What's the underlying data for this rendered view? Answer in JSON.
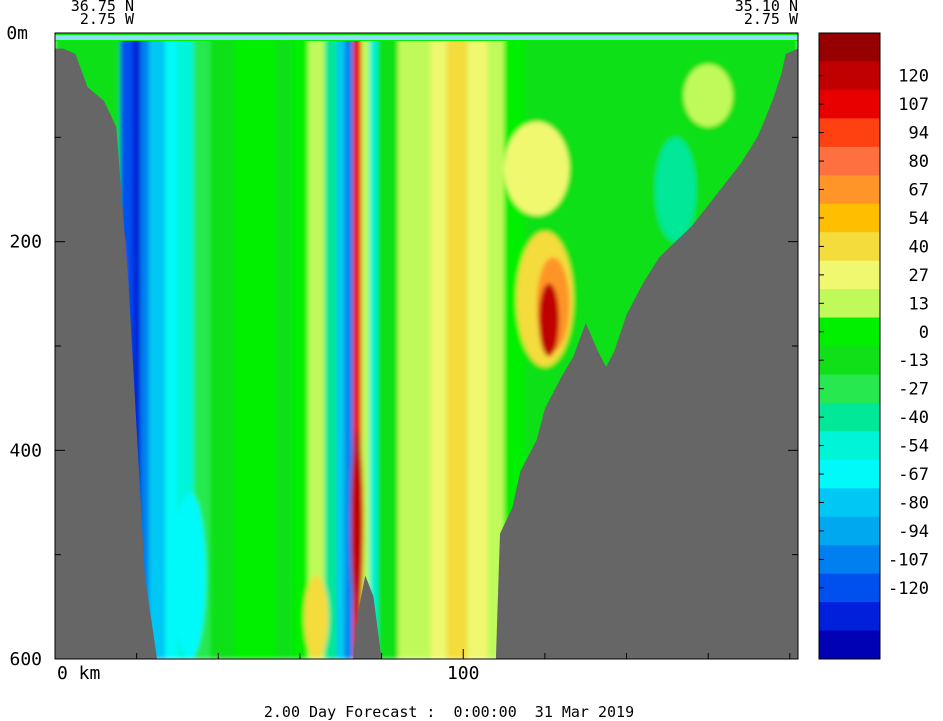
{
  "chart_data": {
    "type": "heatmap",
    "title": "",
    "xlabel": "",
    "ylabel": "",
    "x_unit_label": "km",
    "y_unit_label": "m",
    "xlim": [
      0,
      182
    ],
    "ylim": [
      600,
      0
    ],
    "x_ticks": [
      0,
      100
    ],
    "y_ticks": [
      0,
      200,
      400,
      600
    ],
    "section_start": {
      "lat": "36.75 N",
      "lon": "2.75 W"
    },
    "section_end": {
      "lat": "35.10 N",
      "lon": "2.75 W"
    },
    "forecast_label": "2.00 Day Forecast :  0:00:00  31 Mar 2019",
    "colorbar": {
      "labels": [
        "120",
        "107",
        "94",
        "80",
        "67",
        "54",
        "40",
        "27",
        "13",
        "0",
        "-13",
        "-27",
        "-40",
        "-54",
        "-67",
        "-80",
        "-94",
        "-107",
        "-120"
      ],
      "colors": [
        "#960000",
        "#c00000",
        "#e80000",
        "#ff4010",
        "#ff7040",
        "#ff9428",
        "#ffbe00",
        "#f4dc3c",
        "#f0f870",
        "#c0fa5a",
        "#00f000",
        "#10e018",
        "#28e850",
        "#00e898",
        "#00f4d8",
        "#00fafa",
        "#00c8f4",
        "#00a8f0",
        "#0080f0",
        "#0050f0",
        "#0020dc",
        "#0000b4"
      ]
    },
    "bathymetry": [
      [
        0,
        15
      ],
      [
        2,
        15
      ],
      [
        5,
        20
      ],
      [
        8,
        52
      ],
      [
        12,
        65
      ],
      [
        15,
        90
      ],
      [
        18,
        240
      ],
      [
        20,
        380
      ],
      [
        22,
        520
      ],
      [
        25,
        600
      ],
      [
        73,
        600
      ],
      [
        74,
        560
      ],
      [
        76,
        520
      ],
      [
        78,
        540
      ],
      [
        80,
        600
      ],
      [
        108,
        600
      ],
      [
        109,
        480
      ],
      [
        112,
        455
      ],
      [
        114,
        420
      ],
      [
        118,
        390
      ],
      [
        120,
        360
      ],
      [
        124,
        330
      ],
      [
        127,
        310
      ],
      [
        130,
        278
      ],
      [
        133,
        305
      ],
      [
        135,
        320
      ],
      [
        137,
        305
      ],
      [
        140,
        270
      ],
      [
        144,
        240
      ],
      [
        148,
        215
      ],
      [
        152,
        200
      ],
      [
        156,
        185
      ],
      [
        160,
        165
      ],
      [
        164,
        145
      ],
      [
        168,
        125
      ],
      [
        172,
        100
      ],
      [
        174,
        82
      ],
      [
        176,
        62
      ],
      [
        178,
        38
      ],
      [
        179,
        20
      ],
      [
        182,
        15
      ]
    ],
    "bands": [
      {
        "x1": 0,
        "x2": 182,
        "value": -10
      },
      {
        "x1": 16,
        "x2": 19,
        "value": -110
      },
      {
        "x1": 19,
        "x2": 21,
        "value": -120
      },
      {
        "x1": 21,
        "x2": 23,
        "value": -100
      },
      {
        "x1": 23,
        "x2": 27,
        "value": -75
      },
      {
        "x1": 27,
        "x2": 30,
        "value": -55
      },
      {
        "x1": 30,
        "x2": 34,
        "value": -42
      },
      {
        "x1": 34,
        "x2": 38,
        "value": -20
      },
      {
        "x1": 38,
        "x2": 44,
        "value": -5
      },
      {
        "x1": 44,
        "x2": 50,
        "value": 8
      },
      {
        "x1": 50,
        "x2": 54,
        "value": 1
      },
      {
        "x1": 54,
        "x2": 58,
        "value": -8
      },
      {
        "x1": 58,
        "x2": 62,
        "value": 5
      },
      {
        "x1": 62,
        "x2": 66,
        "value": 18
      },
      {
        "x1": 66,
        "x2": 69,
        "value": -30
      },
      {
        "x1": 69,
        "x2": 71,
        "value": -70
      },
      {
        "x1": 71,
        "x2": 73,
        "value": -90
      },
      {
        "x1": 73,
        "x2": 75,
        "value": 112
      },
      {
        "x1": 75,
        "x2": 77,
        "value": 20
      },
      {
        "x1": 77,
        "x2": 79,
        "value": -50
      },
      {
        "x1": 79,
        "x2": 84,
        "value": -12
      },
      {
        "x1": 84,
        "x2": 92,
        "value": 14
      },
      {
        "x1": 92,
        "x2": 96,
        "value": 30
      },
      {
        "x1": 96,
        "x2": 101,
        "value": 42
      },
      {
        "x1": 101,
        "x2": 106,
        "value": 28
      },
      {
        "x1": 106,
        "x2": 110,
        "value": 14
      },
      {
        "x1": 110,
        "x2": 115,
        "value": 2
      }
    ],
    "blobs": [
      {
        "x": 120,
        "y": 255,
        "rx": 7,
        "ry": 65,
        "value": 45
      },
      {
        "x": 122,
        "y": 260,
        "rx": 4,
        "ry": 45,
        "value": 75
      },
      {
        "x": 121,
        "y": 275,
        "rx": 2.5,
        "ry": 35,
        "value": 120
      },
      {
        "x": 118,
        "y": 130,
        "rx": 8,
        "ry": 45,
        "value": 30
      },
      {
        "x": 16,
        "y": 245,
        "rx": 1,
        "ry": 50,
        "value": 110
      },
      {
        "x": 74,
        "y": 470,
        "rx": 1.5,
        "ry": 90,
        "value": 125
      },
      {
        "x": 64,
        "y": 560,
        "rx": 3,
        "ry": 40,
        "value": 40
      },
      {
        "x": 33,
        "y": 520,
        "rx": 4,
        "ry": 80,
        "value": -60
      },
      {
        "x": 160,
        "y": 60,
        "rx": 6,
        "ry": 30,
        "value": 20
      },
      {
        "x": 152,
        "y": 150,
        "rx": 5,
        "ry": 50,
        "value": -30
      }
    ]
  }
}
